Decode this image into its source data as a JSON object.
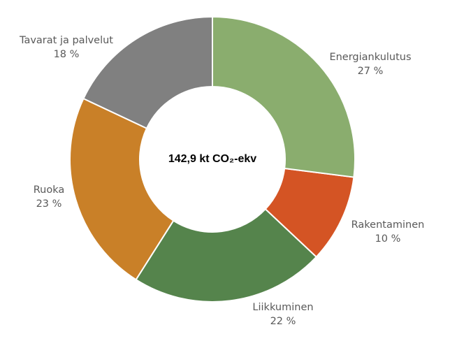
{
  "chart_data": {
    "type": "donut",
    "center_label": "142,9 kt CO₂-ekv",
    "categories": [
      "Energiankulutus",
      "Rakentaminen",
      "Liikkuminen",
      "Ruoka",
      "Tavarat ja palvelut"
    ],
    "values": [
      27,
      10,
      22,
      23,
      18
    ],
    "value_labels": [
      "27 %",
      "10 %",
      "22 %",
      "23 %",
      "18 %"
    ],
    "colors": [
      "#8aad6e",
      "#d45424",
      "#55844c",
      "#c98028",
      "#808080"
    ]
  }
}
